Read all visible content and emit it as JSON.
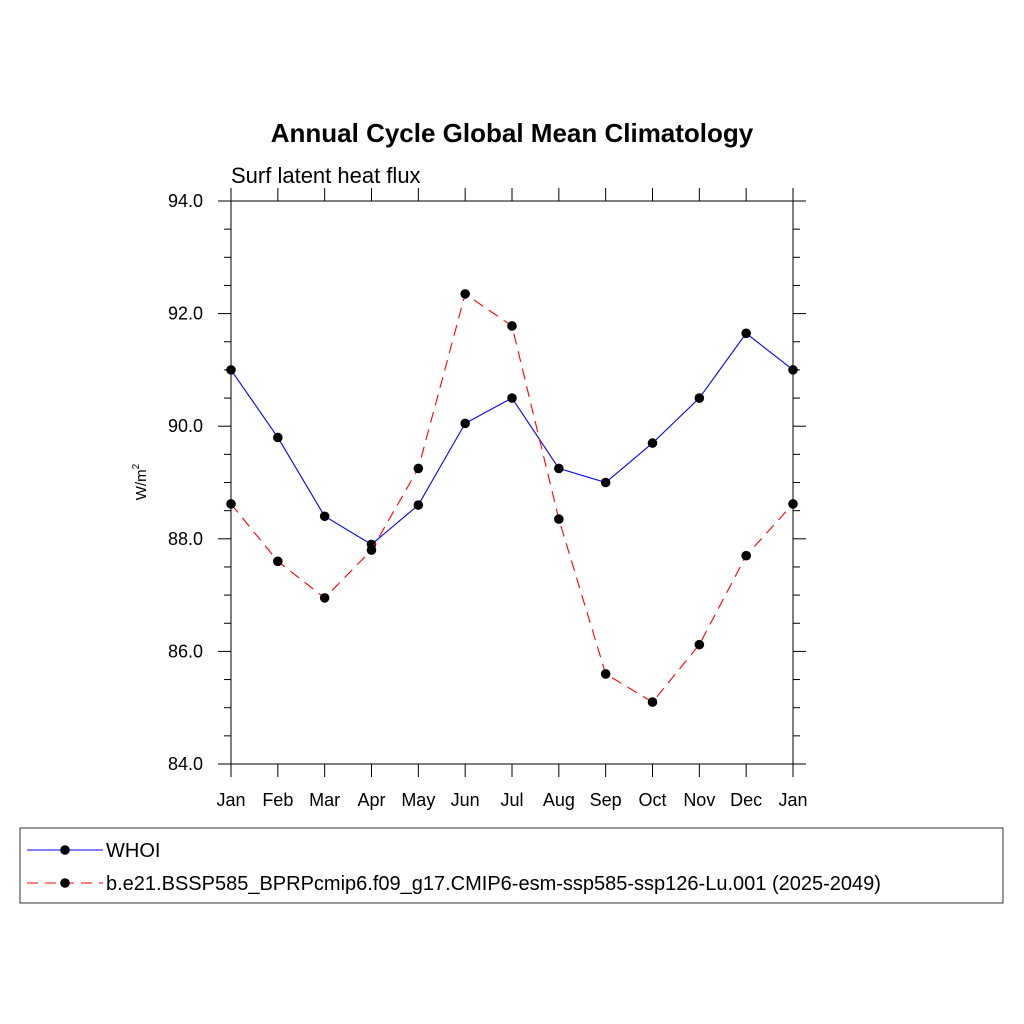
{
  "chart_data": {
    "type": "line",
    "title": "Annual Cycle Global Mean Climatology",
    "subtitle": "Surf latent heat flux",
    "ylabel": "W/m",
    "ylabel_superscript": "2",
    "xlabel": "",
    "ylim": [
      84.0,
      94.0
    ],
    "y_ticks": [
      "84.0",
      "86.0",
      "88.0",
      "90.0",
      "92.0",
      "94.0"
    ],
    "categories": [
      "Jan",
      "Feb",
      "Mar",
      "Apr",
      "May",
      "Jun",
      "Jul",
      "Aug",
      "Sep",
      "Oct",
      "Nov",
      "Dec",
      "Jan"
    ],
    "series": [
      {
        "name": "WHOI",
        "color": "#0000ff",
        "dash": "solid",
        "values": [
          91.0,
          89.8,
          88.4,
          87.9,
          88.6,
          90.05,
          90.5,
          89.25,
          89.0,
          89.7,
          90.5,
          91.65,
          91.0
        ]
      },
      {
        "name": "b.e21.BSSP585_BPRPcmip6.f09_g17.CMIP6-esm-ssp585-ssp126-Lu.001 (2025-2049)",
        "color": "#ff0000",
        "dash": "dashed",
        "values": [
          88.62,
          87.6,
          86.95,
          87.8,
          89.25,
          92.35,
          91.78,
          88.35,
          85.6,
          85.1,
          86.12,
          87.7,
          88.62
        ]
      }
    ],
    "grid": false,
    "legend": "bottom"
  }
}
